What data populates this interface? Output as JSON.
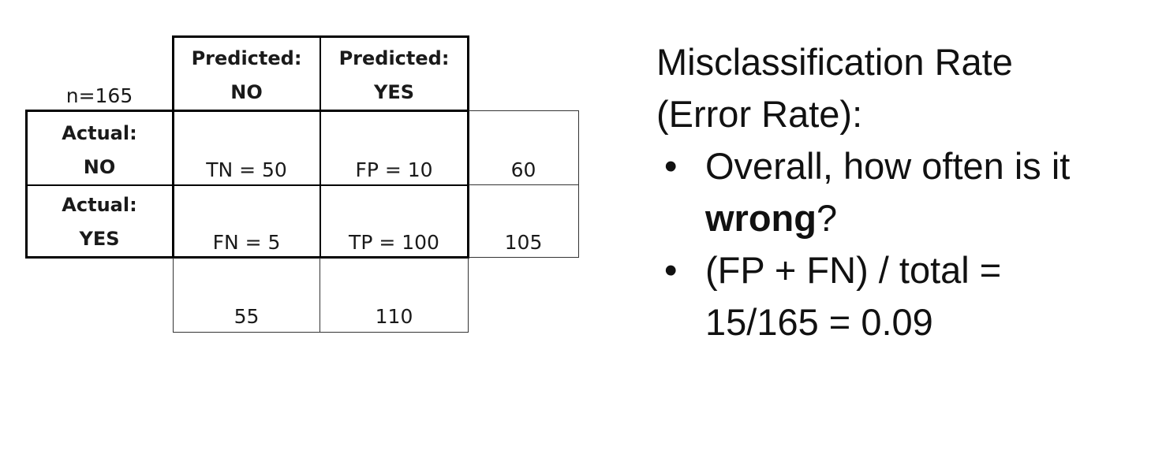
{
  "matrix": {
    "n_label": "n=165",
    "col_headers": [
      {
        "line1": "Predicted:",
        "line2": "NO"
      },
      {
        "line1": "Predicted:",
        "line2": "YES"
      }
    ],
    "row_headers": [
      {
        "line1": "Actual:",
        "line2": "NO"
      },
      {
        "line1": "Actual:",
        "line2": "YES"
      }
    ],
    "cells": [
      [
        "TN = 50",
        "FP = 10"
      ],
      [
        "FN = 5",
        "TP = 100"
      ]
    ],
    "row_totals": [
      "60",
      "105"
    ],
    "col_totals": [
      "55",
      "110"
    ]
  },
  "explanation": {
    "title_line1": "Misclassification Rate",
    "title_line2": "(Error Rate):",
    "bullet_symbol": "•",
    "bullet1_line1": "Overall, how often is it",
    "bullet1_bold": "wrong",
    "bullet1_end": "?",
    "bullet2_line1": "(FP + FN) / total =",
    "bullet2_line2": "15/165 = 0.09"
  }
}
